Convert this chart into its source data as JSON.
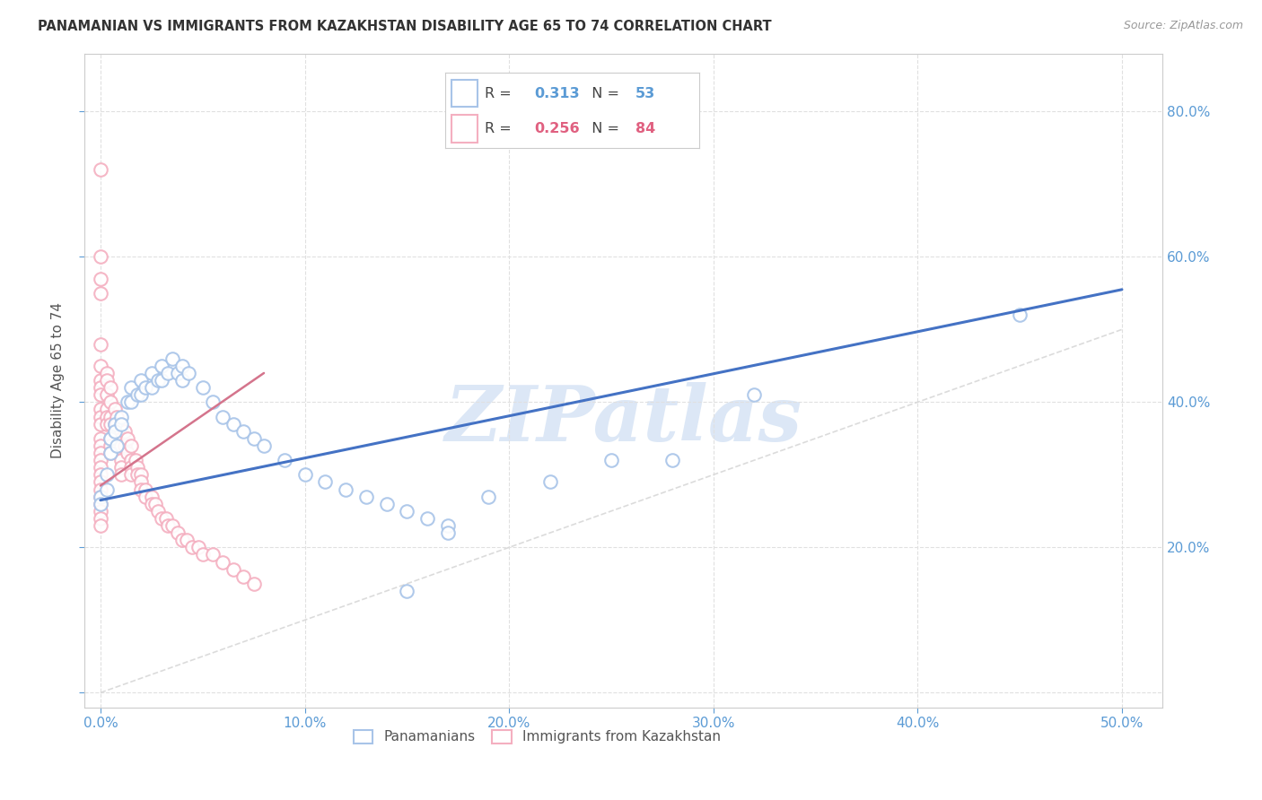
{
  "title": "PANAMANIAN VS IMMIGRANTS FROM KAZAKHSTAN DISABILITY AGE 65 TO 74 CORRELATION CHART",
  "source": "Source: ZipAtlas.com",
  "ylabel": "Disability Age 65 to 74",
  "xlim": [
    -0.008,
    0.52
  ],
  "ylim": [
    -0.02,
    0.88
  ],
  "blue_R": 0.313,
  "blue_N": 53,
  "pink_R": 0.256,
  "pink_N": 84,
  "blue_color": "#a8c4e8",
  "pink_color": "#f4afc0",
  "line_blue": "#4472c4",
  "line_pink": "#d4748c",
  "diag_color": "#d8d8d8",
  "watermark": "ZIPatlas",
  "watermark_color": "#c5d8f0",
  "blue_scatter_x": [
    0.0,
    0.0,
    0.003,
    0.003,
    0.005,
    0.005,
    0.007,
    0.007,
    0.008,
    0.01,
    0.01,
    0.013,
    0.015,
    0.015,
    0.018,
    0.02,
    0.02,
    0.022,
    0.025,
    0.025,
    0.028,
    0.03,
    0.03,
    0.033,
    0.035,
    0.038,
    0.04,
    0.04,
    0.043,
    0.05,
    0.055,
    0.06,
    0.065,
    0.07,
    0.075,
    0.08,
    0.09,
    0.1,
    0.11,
    0.12,
    0.13,
    0.14,
    0.15,
    0.16,
    0.17,
    0.45,
    0.32,
    0.28,
    0.25,
    0.22,
    0.19,
    0.17,
    0.15
  ],
  "blue_scatter_y": [
    0.27,
    0.26,
    0.3,
    0.28,
    0.35,
    0.33,
    0.37,
    0.36,
    0.34,
    0.38,
    0.37,
    0.4,
    0.42,
    0.4,
    0.41,
    0.43,
    0.41,
    0.42,
    0.44,
    0.42,
    0.43,
    0.45,
    0.43,
    0.44,
    0.46,
    0.44,
    0.45,
    0.43,
    0.44,
    0.42,
    0.4,
    0.38,
    0.37,
    0.36,
    0.35,
    0.34,
    0.32,
    0.3,
    0.29,
    0.28,
    0.27,
    0.26,
    0.25,
    0.24,
    0.23,
    0.52,
    0.41,
    0.32,
    0.32,
    0.29,
    0.27,
    0.22,
    0.14
  ],
  "pink_scatter_x": [
    0.0,
    0.0,
    0.0,
    0.0,
    0.0,
    0.0,
    0.0,
    0.0,
    0.0,
    0.0,
    0.0,
    0.0,
    0.0,
    0.0,
    0.0,
    0.0,
    0.0,
    0.0,
    0.0,
    0.0,
    0.0,
    0.0,
    0.0,
    0.0,
    0.0,
    0.003,
    0.003,
    0.003,
    0.003,
    0.003,
    0.003,
    0.005,
    0.005,
    0.005,
    0.005,
    0.005,
    0.005,
    0.005,
    0.007,
    0.007,
    0.007,
    0.008,
    0.008,
    0.01,
    0.01,
    0.01,
    0.01,
    0.01,
    0.01,
    0.012,
    0.012,
    0.013,
    0.013,
    0.015,
    0.015,
    0.015,
    0.015,
    0.017,
    0.018,
    0.018,
    0.02,
    0.02,
    0.02,
    0.022,
    0.022,
    0.025,
    0.025,
    0.027,
    0.028,
    0.03,
    0.032,
    0.033,
    0.035,
    0.038,
    0.04,
    0.042,
    0.045,
    0.048,
    0.05,
    0.055,
    0.06,
    0.065,
    0.07,
    0.075
  ],
  "pink_scatter_y": [
    0.72,
    0.6,
    0.57,
    0.55,
    0.48,
    0.45,
    0.43,
    0.42,
    0.41,
    0.39,
    0.38,
    0.37,
    0.35,
    0.34,
    0.33,
    0.32,
    0.31,
    0.3,
    0.29,
    0.28,
    0.27,
    0.26,
    0.25,
    0.24,
    0.23,
    0.44,
    0.43,
    0.41,
    0.39,
    0.38,
    0.37,
    0.42,
    0.4,
    0.38,
    0.37,
    0.35,
    0.34,
    0.33,
    0.39,
    0.37,
    0.36,
    0.38,
    0.37,
    0.36,
    0.35,
    0.34,
    0.32,
    0.31,
    0.3,
    0.36,
    0.34,
    0.35,
    0.33,
    0.34,
    0.32,
    0.31,
    0.3,
    0.32,
    0.31,
    0.3,
    0.3,
    0.29,
    0.28,
    0.28,
    0.27,
    0.27,
    0.26,
    0.26,
    0.25,
    0.24,
    0.24,
    0.23,
    0.23,
    0.22,
    0.21,
    0.21,
    0.2,
    0.2,
    0.19,
    0.19,
    0.18,
    0.17,
    0.16,
    0.15
  ],
  "blue_line_x": [
    0.0,
    0.5
  ],
  "blue_line_y": [
    0.265,
    0.555
  ],
  "pink_line_x": [
    0.0,
    0.08
  ],
  "pink_line_y": [
    0.285,
    0.44
  ],
  "diag_line_x": [
    0.0,
    0.5
  ],
  "diag_line_y": [
    0.0,
    0.5
  ],
  "xtick_vals": [
    0.0,
    0.1,
    0.2,
    0.3,
    0.4,
    0.5
  ],
  "ytick_vals": [
    0.0,
    0.2,
    0.4,
    0.6,
    0.8
  ]
}
